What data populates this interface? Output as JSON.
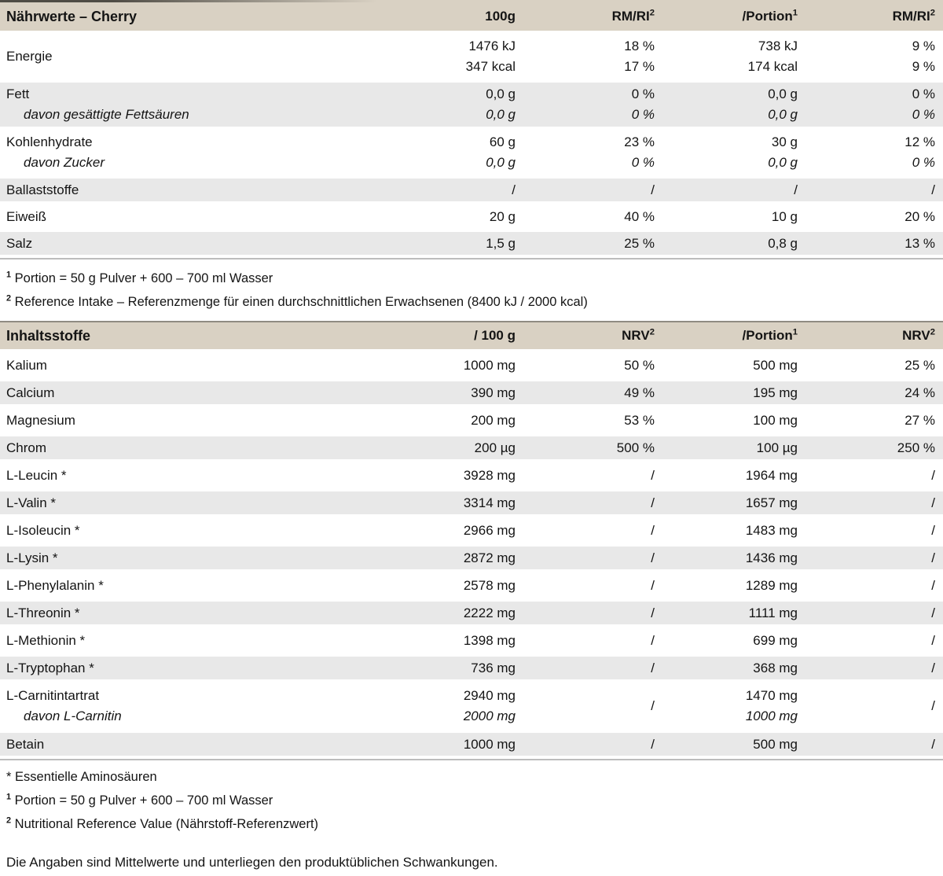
{
  "colors": {
    "header_bg": "#d9d1c3",
    "row_shade": "#e8e8e8",
    "rule": "#bdbdbd",
    "text": "#141414"
  },
  "nutrition_table": {
    "title": "Nährwerte – Cherry",
    "columns": [
      {
        "base": "100g"
      },
      {
        "base": "RM/RI",
        "sup": "2"
      },
      {
        "base": "/Portion",
        "sup": "1"
      },
      {
        "base": "RM/RI",
        "sup": "2"
      }
    ],
    "rows": [
      {
        "label": "Energie",
        "cells": [
          [
            "1476 kJ",
            "347 kcal"
          ],
          [
            "18 %",
            "17 %"
          ],
          [
            "738 kJ",
            "174 kcal"
          ],
          [
            "9 %",
            "9 %"
          ]
        ],
        "shade": false
      },
      {
        "label": "Fett",
        "sub": "davon gesättigte Fettsäuren",
        "cells": [
          [
            "0,0 g",
            "0,0 g"
          ],
          [
            "0 %",
            "0 %"
          ],
          [
            "0,0 g",
            "0,0 g"
          ],
          [
            "0 %",
            "0 %"
          ]
        ],
        "shade": true
      },
      {
        "label": "Kohlenhydrate",
        "sub": "davon Zucker",
        "cells": [
          [
            "60 g",
            "0,0 g"
          ],
          [
            "23 %",
            "0 %"
          ],
          [
            "30 g",
            "0,0 g"
          ],
          [
            "12 %",
            "0 %"
          ]
        ],
        "shade": false
      },
      {
        "label": "Ballaststoffe",
        "cells": [
          [
            "/"
          ],
          [
            "/"
          ],
          [
            "/"
          ],
          [
            "/"
          ]
        ],
        "shade": true
      },
      {
        "label": "Eiweiß",
        "cells": [
          [
            "20 g"
          ],
          [
            "40 %"
          ],
          [
            "10 g"
          ],
          [
            "20 %"
          ]
        ],
        "shade": false
      },
      {
        "label": "Salz",
        "cells": [
          [
            "1,5 g"
          ],
          [
            "25 %"
          ],
          [
            "0,8 g"
          ],
          [
            "13 %"
          ]
        ],
        "shade": true
      }
    ],
    "footnotes": [
      {
        "marker": "1",
        "sup": true,
        "text": "Portion = 50 g Pulver + 600 – 700 ml Wasser"
      },
      {
        "marker": "2",
        "sup": true,
        "text": "Reference Intake – Referenzmenge für einen durchschnittlichen Erwachsenen (8400 kJ / 2000 kcal)"
      }
    ]
  },
  "ingredients_table": {
    "title": "Inhaltsstoffe",
    "columns": [
      {
        "base": "/ 100 g"
      },
      {
        "base": "NRV",
        "sup": "2"
      },
      {
        "base": "/Portion",
        "sup": "1"
      },
      {
        "base": "NRV",
        "sup": "2"
      }
    ],
    "rows": [
      {
        "label": "Kalium",
        "cells": [
          [
            "1000 mg"
          ],
          [
            "50 %"
          ],
          [
            "500 mg"
          ],
          [
            "25 %"
          ]
        ],
        "shade": false
      },
      {
        "label": "Calcium",
        "cells": [
          [
            "390 mg"
          ],
          [
            "49 %"
          ],
          [
            "195 mg"
          ],
          [
            "24 %"
          ]
        ],
        "shade": true
      },
      {
        "label": "Magnesium",
        "cells": [
          [
            "200 mg"
          ],
          [
            "53 %"
          ],
          [
            "100 mg"
          ],
          [
            "27 %"
          ]
        ],
        "shade": false
      },
      {
        "label": "Chrom",
        "cells": [
          [
            "200 µg"
          ],
          [
            "500 %"
          ],
          [
            "100 µg"
          ],
          [
            "250 %"
          ]
        ],
        "shade": true
      },
      {
        "label": "L-Leucin *",
        "cells": [
          [
            "3928 mg"
          ],
          [
            "/"
          ],
          [
            "1964 mg"
          ],
          [
            "/"
          ]
        ],
        "shade": false
      },
      {
        "label": "L-Valin *",
        "cells": [
          [
            "3314 mg"
          ],
          [
            "/"
          ],
          [
            "1657 mg"
          ],
          [
            "/"
          ]
        ],
        "shade": true
      },
      {
        "label": "L-Isoleucin *",
        "cells": [
          [
            "2966 mg"
          ],
          [
            "/"
          ],
          [
            "1483 mg"
          ],
          [
            "/"
          ]
        ],
        "shade": false
      },
      {
        "label": "L-Lysin *",
        "cells": [
          [
            "2872 mg"
          ],
          [
            "/"
          ],
          [
            "1436 mg"
          ],
          [
            "/"
          ]
        ],
        "shade": true
      },
      {
        "label": "L-Phenylalanin *",
        "cells": [
          [
            "2578 mg"
          ],
          [
            "/"
          ],
          [
            "1289 mg"
          ],
          [
            "/"
          ]
        ],
        "shade": false
      },
      {
        "label": "L-Threonin *",
        "cells": [
          [
            "2222 mg"
          ],
          [
            "/"
          ],
          [
            "1111 mg"
          ],
          [
            "/"
          ]
        ],
        "shade": true
      },
      {
        "label": "L-Methionin *",
        "cells": [
          [
            "1398 mg"
          ],
          [
            "/"
          ],
          [
            "699 mg"
          ],
          [
            "/"
          ]
        ],
        "shade": false
      },
      {
        "label": "L-Tryptophan *",
        "cells": [
          [
            "736 mg"
          ],
          [
            "/"
          ],
          [
            "368 mg"
          ],
          [
            "/"
          ]
        ],
        "shade": true
      },
      {
        "label": "L-Carnitintartrat",
        "sub": "davon L-Carnitin",
        "cells": [
          [
            "2940 mg",
            "2000 mg"
          ],
          [
            "/"
          ],
          [
            "1470 mg",
            "1000 mg"
          ],
          [
            "/"
          ]
        ],
        "shade": false
      },
      {
        "label": "Betain",
        "cells": [
          [
            "1000 mg"
          ],
          [
            "/"
          ],
          [
            "500 mg"
          ],
          [
            "/"
          ]
        ],
        "shade": true
      }
    ],
    "footnotes": [
      {
        "marker": "*",
        "sup": false,
        "text": "Essentielle Aminosäuren"
      },
      {
        "marker": "1",
        "sup": true,
        "text": "Portion = 50 g Pulver + 600 – 700 ml Wasser"
      },
      {
        "marker": "2",
        "sup": true,
        "text": "Nutritional Reference Value (Nährstoff-Referenzwert)"
      }
    ]
  },
  "disclaimer": "Die Angaben sind Mittelwerte und unterliegen den produktüblichen Schwankungen."
}
